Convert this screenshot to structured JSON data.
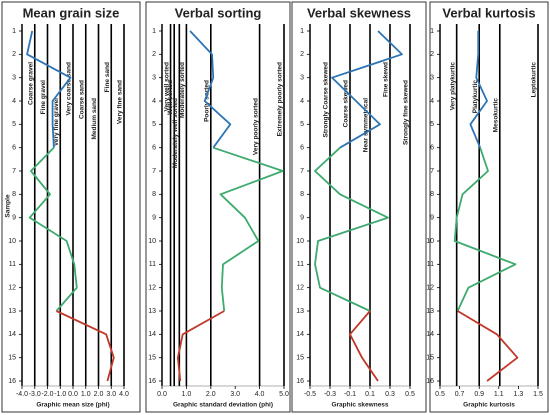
{
  "chart_data": [
    {
      "type": "line",
      "title": "Mean grain size",
      "xlabel": "Graphic mean size (phi)",
      "ylabel": "Sample",
      "xlim": [
        -4,
        4
      ],
      "xticks": [
        {
          "value": -4,
          "label": "-4.0"
        },
        {
          "value": -3,
          "label": "-3.0"
        },
        {
          "value": -2,
          "label": "-2.0"
        },
        {
          "value": -1,
          "label": "-1.0"
        },
        {
          "value": 0,
          "label": "0.0"
        },
        {
          "value": 1,
          "label": "1.0"
        },
        {
          "value": 2,
          "label": "2.0"
        },
        {
          "value": 3,
          "label": "3.0"
        },
        {
          "value": 4,
          "label": "4.0"
        }
      ],
      "ylim": [
        1,
        16
      ],
      "yticks": [
        1,
        2,
        3,
        4,
        5,
        6,
        7,
        8,
        9,
        10,
        11,
        12,
        13,
        14,
        15,
        16
      ],
      "class_lines": [
        {
          "value": -3,
          "label": "Coarse gravel"
        },
        {
          "value": -2,
          "label": "Fine gravel"
        },
        {
          "value": -1,
          "label": "Very fine gravel"
        },
        {
          "value": 0,
          "label": "Very coarse sand"
        },
        {
          "value": 1,
          "label": "Coarse sand"
        },
        {
          "value": 2,
          "label": "Medium sand"
        },
        {
          "value": 3,
          "label": "Fine sand"
        },
        {
          "value": 4,
          "label": "Very fine sand"
        }
      ],
      "series": [
        {
          "color": "#2e75b6",
          "values": [
            -3.2,
            -3.6,
            -0.2,
            -1.6,
            -1.6,
            -1.5,
            null,
            null,
            null,
            null,
            null,
            null,
            null,
            null,
            null,
            null
          ]
        },
        {
          "color": "#3daa6e",
          "values": [
            null,
            null,
            null,
            null,
            null,
            -1.5,
            -3.3,
            -1.8,
            -3.4,
            -0.5,
            0.1,
            0.3,
            -1.3,
            null,
            null,
            null
          ]
        },
        {
          "color": "#c0392b",
          "values": [
            null,
            null,
            null,
            null,
            null,
            null,
            null,
            null,
            null,
            null,
            null,
            null,
            -1.3,
            2.6,
            3.2,
            2.7
          ]
        }
      ]
    },
    {
      "type": "line",
      "title": "Verbal sorting",
      "xlabel": "Graphic standard deviation (phi)",
      "xlim": [
        0,
        5
      ],
      "xticks": [
        {
          "value": 0,
          "label": "0.0"
        },
        {
          "value": 1,
          "label": "1.0"
        },
        {
          "value": 2,
          "label": "2.0"
        },
        {
          "value": 3,
          "label": "3.0"
        },
        {
          "value": 4,
          "label": "4.0"
        },
        {
          "value": 5,
          "label": "5.0"
        }
      ],
      "ylim": [
        1,
        16
      ],
      "yticks": [
        1,
        2,
        3,
        4,
        5,
        6,
        7,
        8,
        9,
        10,
        11,
        12,
        13,
        14,
        15,
        16
      ],
      "class_lines": [
        {
          "value": 0.35,
          "label": "Very well sorted"
        },
        {
          "value": 0.5,
          "label": "Well sorted"
        },
        {
          "value": 0.71,
          "label": "Moderately well sorted"
        },
        {
          "value": 1,
          "label": "Moderately sorted"
        },
        {
          "value": 2,
          "label": "Poorly sorted"
        },
        {
          "value": 4,
          "label": "Very poorly sorted"
        },
        {
          "value": 5,
          "label": "Extremely poorly sorted"
        }
      ],
      "series": [
        {
          "color": "#2e75b6",
          "values": [
            1.15,
            2.05,
            2.1,
            1.75,
            2.8,
            2.1,
            null,
            null,
            null,
            null,
            null,
            null,
            null,
            null,
            null,
            null
          ]
        },
        {
          "color": "#3daa6e",
          "values": [
            null,
            null,
            null,
            null,
            null,
            2.1,
            4.95,
            2.4,
            3.4,
            3.95,
            2.5,
            2.45,
            2.55,
            null,
            null,
            null
          ]
        },
        {
          "color": "#c0392b",
          "values": [
            null,
            null,
            null,
            null,
            null,
            null,
            null,
            null,
            null,
            null,
            null,
            null,
            2.55,
            0.85,
            0.65,
            0.75
          ]
        }
      ]
    },
    {
      "type": "line",
      "title": "Verbal skewness",
      "xlabel": "Graphic skewness",
      "xlim": [
        -0.5,
        0.5
      ],
      "xticks": [
        -0.5,
        -0.3,
        -0.1,
        0.1,
        0.3,
        0.5
      ],
      "ylim": [
        1,
        16
      ],
      "yticks": [
        1,
        2,
        3,
        4,
        5,
        6,
        7,
        8,
        9,
        10,
        11,
        12,
        13,
        14,
        15,
        16
      ],
      "class_lines": [
        {
          "value": -0.3,
          "label": "Strongly Coarse skewed"
        },
        {
          "value": -0.1,
          "label": "Coarse skewed"
        },
        {
          "value": 0.1,
          "label": "Near symmetrical"
        },
        {
          "value": 0.3,
          "label": "Fine skewd"
        },
        {
          "value": 0.5,
          "label": "Strongly fine skewed"
        }
      ],
      "series": [
        {
          "color": "#2e75b6",
          "values": [
            0.18,
            0.42,
            -0.28,
            -0.04,
            0.2,
            -0.2,
            null,
            null,
            null,
            null,
            null,
            null,
            null,
            null,
            null,
            null
          ]
        },
        {
          "color": "#3daa6e",
          "values": [
            null,
            null,
            null,
            null,
            null,
            -0.2,
            -0.45,
            -0.2,
            0.28,
            -0.42,
            -0.45,
            -0.4,
            0.1,
            null,
            null,
            null
          ]
        },
        {
          "color": "#c0392b",
          "values": [
            null,
            null,
            null,
            null,
            null,
            null,
            null,
            null,
            null,
            null,
            null,
            null,
            0.1,
            -0.1,
            0.02,
            0.18
          ]
        }
      ]
    },
    {
      "type": "line",
      "title": "Verbal kurtosis",
      "xlabel": "Graphic kurtosis",
      "xlim": [
        0.5,
        1.5
      ],
      "xticks": [
        0.5,
        0.7,
        0.9,
        1.1,
        1.3,
        1.5
      ],
      "ylim": [
        1,
        16
      ],
      "yticks": [
        1,
        2,
        3,
        4,
        5,
        6,
        7,
        8,
        9,
        10,
        11,
        12,
        13,
        14,
        15,
        16
      ],
      "class_lines": [
        {
          "value": 0.67,
          "label": "Very platykurtic"
        },
        {
          "value": 0.9,
          "label": "Platykurtic"
        },
        {
          "value": 1.11,
          "label": "Mesokurtic"
        },
        {
          "value": 1.5,
          "label": "Leptokurtic"
        }
      ],
      "series": [
        {
          "color": "#2e75b6",
          "values": [
            0.89,
            0.89,
            0.87,
            0.98,
            0.81,
            0.91,
            null,
            null,
            null,
            null,
            null,
            null,
            null,
            null,
            null,
            null
          ]
        },
        {
          "color": "#3daa6e",
          "values": [
            null,
            null,
            null,
            null,
            null,
            0.91,
            0.99,
            0.73,
            0.67,
            0.65,
            1.27,
            0.79,
            0.68,
            null,
            null,
            null
          ]
        },
        {
          "color": "#c0392b",
          "values": [
            null,
            null,
            null,
            null,
            null,
            null,
            null,
            null,
            null,
            null,
            null,
            null,
            0.68,
            1.08,
            1.29,
            0.98
          ]
        }
      ]
    }
  ]
}
